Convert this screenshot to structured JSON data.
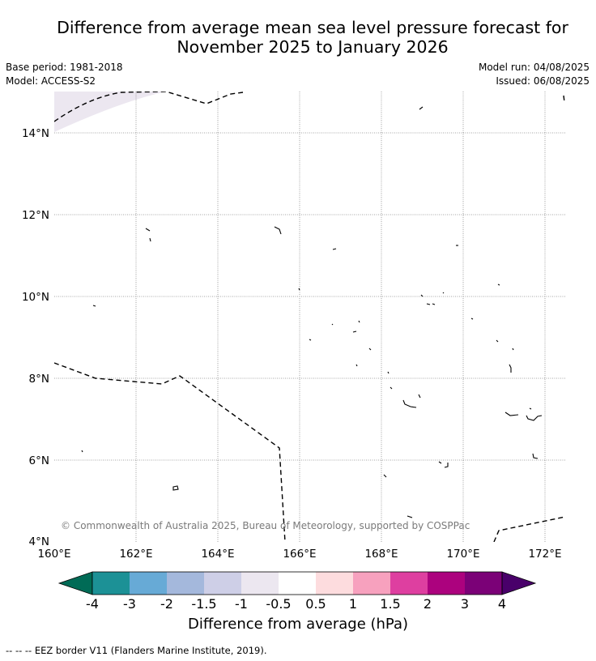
{
  "title_line1": "Difference from average mean sea level pressure forecast for",
  "title_line2": "November 2025 to January 2026",
  "base_period": "Base period: 1981-2018",
  "model": "Model: ACCESS-S2",
  "model_run": "Model run: 04/08/2025",
  "issued": "Issued: 06/08/2025",
  "map": {
    "lat_labels": [
      "14°N",
      "12°N",
      "10°N",
      "8°N",
      "6°N",
      "4°N"
    ],
    "lon_labels": [
      "160°E",
      "162°E",
      "164°E",
      "166°E",
      "168°E",
      "170°E",
      "172°E"
    ],
    "copyright": "© Commonwealth of Australia 2025, Bureau of Meteorology, supported by COSPPac",
    "shaded_area_class": "-1 to -0.5"
  },
  "colorbar": {
    "title": "Difference from average (hPa)",
    "ticks": [
      "-4",
      "-3",
      "-2",
      "-1.5",
      "-1",
      "-0.5",
      "0.5",
      "1",
      "1.5",
      "2",
      "3",
      "4"
    ],
    "colors": {
      "below_min": "#006b56",
      "-4_-3": "#1c9196",
      "-3_-2": "#67aad6",
      "-2_-1.5": "#a4b8dc",
      "-1.5_-1": "#cecfe7",
      "-1_-0.5": "#ece7f0",
      "-0.5_0.5": "#ffffff",
      "0.5_1": "#fddcde",
      "1_1.5": "#f7a1be",
      "1.5_2": "#de3fa0",
      "2_3": "#ac027e",
      "3_4": "#7b0177",
      "above_max": "#49006a"
    }
  },
  "legend_note": "--  --  -- EEZ border V11 (Flanders Marine Institute, 2019)."
}
